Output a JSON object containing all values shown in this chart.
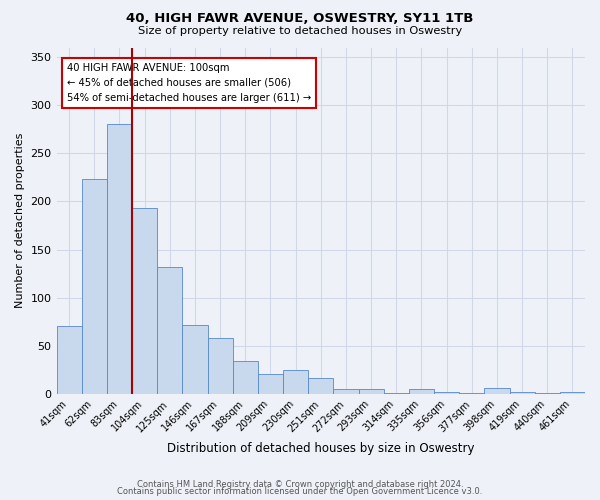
{
  "title": "40, HIGH FAWR AVENUE, OSWESTRY, SY11 1TB",
  "subtitle": "Size of property relative to detached houses in Oswestry",
  "xlabel": "Distribution of detached houses by size in Oswestry",
  "ylabel": "Number of detached properties",
  "bar_labels": [
    "41sqm",
    "62sqm",
    "83sqm",
    "104sqm",
    "125sqm",
    "146sqm",
    "167sqm",
    "188sqm",
    "209sqm",
    "230sqm",
    "251sqm",
    "272sqm",
    "293sqm",
    "314sqm",
    "335sqm",
    "356sqm",
    "377sqm",
    "398sqm",
    "419sqm",
    "440sqm",
    "461sqm"
  ],
  "bar_heights": [
    70,
    223,
    280,
    193,
    132,
    72,
    58,
    34,
    21,
    25,
    16,
    5,
    5,
    1,
    5,
    2,
    1,
    6,
    2,
    1,
    2
  ],
  "bar_color": "#c8d9ee",
  "bar_edge_color": "#5588cc",
  "vline_x_index": 3,
  "vline_color": "#aa0000",
  "annotation_line1": "40 HIGH FAWR AVENUE: 100sqm",
  "annotation_line2": "← 45% of detached houses are smaller (506)",
  "annotation_line3": "54% of semi-detached houses are larger (611) →",
  "annotation_box_edge_color": "#cc0000",
  "annotation_box_face_color": "#ffffff",
  "ylim": [
    0,
    360
  ],
  "yticks": [
    0,
    50,
    100,
    150,
    200,
    250,
    300,
    350
  ],
  "background_color": "#eef2f8",
  "grid_color": "#d0d8e8",
  "footer_line1": "Contains HM Land Registry data © Crown copyright and database right 2024.",
  "footer_line2": "Contains public sector information licensed under the Open Government Licence v3.0."
}
